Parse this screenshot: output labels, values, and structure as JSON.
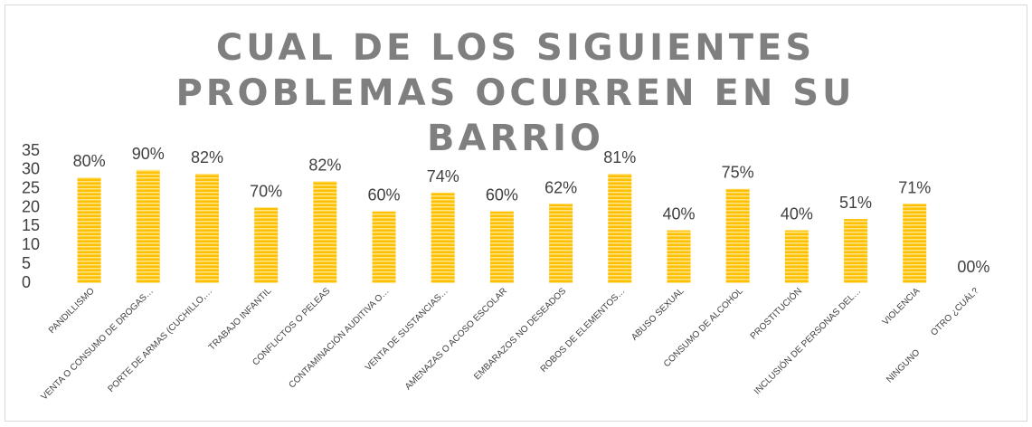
{
  "chart_data": {
    "type": "bar",
    "title": "CUAL DE LOS SIGUIENTES PROBLEMAS OCURREN EN SU BARRIO",
    "categories": [
      "PANDILLISMO",
      "VENTA O CONSUMO DE DROGAS…",
      "PORTE DE ARMAS (CUCHILLO,…",
      "TRABAJO INFANTIL",
      "CONFLICTOS O PELEAS",
      "CONTAMINACIÓN AUDITIVA O…",
      "VENTA DE SUSTANCIAS…",
      "AMENAZAS O ACOSO ESCOLAR",
      "EMBARAZOS NO DESEADOS",
      "ROBOS DE ELEMENTOS…",
      "ABUSO SEXUAL",
      "CONSUMO DE ALCOHOL",
      "PROSTITUCIÓN",
      "INCLUSIÓN DE PERSONAS DEL…",
      "VIOLENCIA",
      "OTRO ¿CUÁL?"
    ],
    "values": [
      28,
      30,
      29,
      20,
      27,
      19,
      24,
      19,
      21,
      29,
      14,
      25,
      14,
      17,
      21,
      0
    ],
    "percent_labels": [
      "80%",
      "90%",
      "82%",
      "70%",
      "82%",
      "60%",
      "74%",
      "60%",
      "62%",
      "81%",
      "40%",
      "75%",
      "40%",
      "51%",
      "71%",
      "00%"
    ],
    "annotation": "NINGUNO",
    "color": "#ffc000",
    "ylim": [
      0,
      35
    ],
    "yticks": [
      0,
      5,
      10,
      15,
      20,
      25,
      30,
      35
    ],
    "grid": false
  }
}
